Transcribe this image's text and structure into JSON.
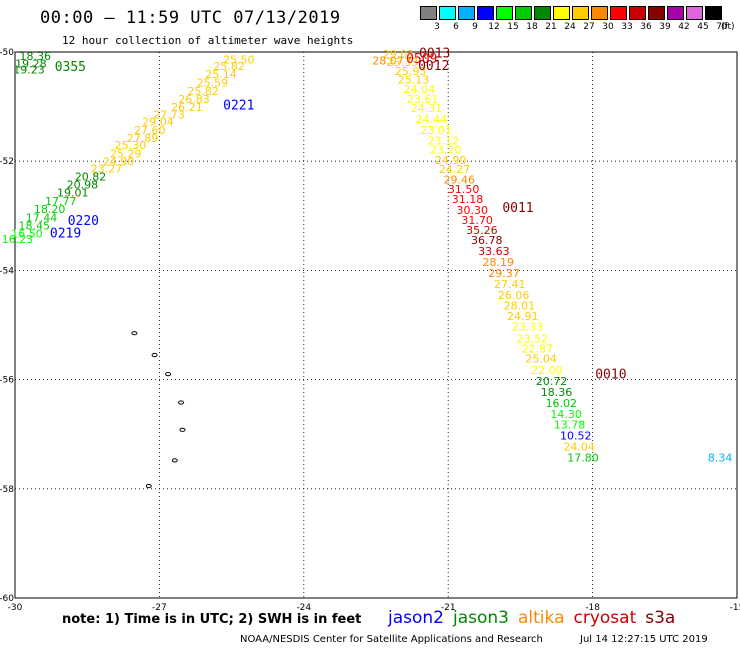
{
  "header": {
    "title": "00:00 – 11:59 UTC 07/13/2019",
    "subtitle": "12 hour collection of altimeter wave heights"
  },
  "color_scale": {
    "unit": "(ft)",
    "bins": [
      {
        "label": "3",
        "color": "#808080"
      },
      {
        "label": "6",
        "color": "#00ffff"
      },
      {
        "label": "9",
        "color": "#00b0ff"
      },
      {
        "label": "12",
        "color": "#0000ff"
      },
      {
        "label": "15",
        "color": "#00ff00"
      },
      {
        "label": "18",
        "color": "#00cc00"
      },
      {
        "label": "21",
        "color": "#008800"
      },
      {
        "label": "24",
        "color": "#ffff00"
      },
      {
        "label": "27",
        "color": "#ffcc00"
      },
      {
        "label": "30",
        "color": "#ff8800"
      },
      {
        "label": "33",
        "color": "#ff0000"
      },
      {
        "label": "36",
        "color": "#cc0000"
      },
      {
        "label": "39",
        "color": "#880000"
      },
      {
        "label": "42",
        "color": "#aa00aa"
      },
      {
        "label": "45",
        "color": "#dd66dd"
      },
      {
        "label": "70",
        "color": "#000000"
      }
    ]
  },
  "footer": {
    "note": "note: 1) Time is in UTC; 2) SWH is in feet",
    "credit": "NOAA/NESDIS Center for Satellite Applications and Research",
    "timestamp": "Jul 14 12:27:15 UTC 2019",
    "legend": [
      {
        "name": "jason2",
        "color": "#0000ff"
      },
      {
        "name": "jason3",
        "color": "#008800"
      },
      {
        "name": "altika",
        "color": "#ff8800"
      },
      {
        "name": "cryosat",
        "color": "#cc0000"
      },
      {
        "name": "s3a",
        "color": "#880000"
      }
    ]
  },
  "chart_data": {
    "type": "scatter",
    "title": "12 hour collection of altimeter wave heights",
    "xlabel": "",
    "ylabel": "",
    "xlim": [
      -30,
      -15
    ],
    "ylim": [
      -60,
      -50
    ],
    "x_ticks": [
      -30,
      -27,
      -24,
      -21,
      -18,
      -15
    ],
    "y_ticks": [
      -50,
      -52,
      -54,
      -56,
      -58,
      -60
    ],
    "x_tick_labels": [
      "-30",
      "-27",
      "-24",
      "-21",
      "-18",
      "-15"
    ],
    "y_tick_labels": [
      "-50",
      "-52",
      "-54",
      "-56",
      "-58",
      "-60"
    ],
    "grid": "dotted",
    "points": [
      {
        "lon": -29.58,
        "lat": -50.15,
        "label": "18.36",
        "color": "#008800"
      },
      {
        "lon": -29.67,
        "lat": -50.28,
        "label": "19.28",
        "color": "#008800"
      },
      {
        "lon": -29.71,
        "lat": -50.39,
        "label": "19.23",
        "color": "#008800"
      },
      {
        "lon": -26.8,
        "lat": -51.22,
        "label": "27.73",
        "color": "#ffcc00"
      },
      {
        "lon": -25.35,
        "lat": -50.21,
        "label": "25.50",
        "color": "#ffcc00"
      },
      {
        "lon": -25.55,
        "lat": -50.33,
        "label": "25.82",
        "color": "#ffcc00"
      },
      {
        "lon": -25.72,
        "lat": -50.48,
        "label": "25.14",
        "color": "#ffcc00"
      },
      {
        "lon": -25.9,
        "lat": -50.63,
        "label": "25.59",
        "color": "#ffcc00"
      },
      {
        "lon": -26.09,
        "lat": -50.79,
        "label": "25.82",
        "color": "#ffcc00"
      },
      {
        "lon": -26.28,
        "lat": -50.93,
        "label": "26.83",
        "color": "#ffcc00"
      },
      {
        "lon": -26.43,
        "lat": -51.08,
        "label": "26.21",
        "color": "#ffcc00"
      },
      {
        "lon": -27.03,
        "lat": -51.35,
        "label": "29.04",
        "color": "#ffcc00"
      },
      {
        "lon": -27.2,
        "lat": -51.5,
        "label": "27.60",
        "color": "#ffcc00"
      },
      {
        "lon": -27.35,
        "lat": -51.65,
        "label": "27.89",
        "color": "#ffcc00"
      },
      {
        "lon": -27.6,
        "lat": -51.78,
        "label": "25.30",
        "color": "#ffcc00"
      },
      {
        "lon": -27.7,
        "lat": -51.93,
        "label": "25.29",
        "color": "#ffcc00"
      },
      {
        "lon": -27.85,
        "lat": -52.08,
        "label": "24.90",
        "color": "#ffcc00"
      },
      {
        "lon": -28.1,
        "lat": -52.21,
        "label": "23.27",
        "color": "#ffcc00"
      },
      {
        "lon": -28.43,
        "lat": -52.35,
        "label": "20.82",
        "color": "#008800"
      },
      {
        "lon": -28.6,
        "lat": -52.5,
        "label": "20.98",
        "color": "#008800"
      },
      {
        "lon": -28.8,
        "lat": -52.65,
        "label": "19.01",
        "color": "#008800"
      },
      {
        "lon": -29.05,
        "lat": -52.8,
        "label": "17.77",
        "color": "#00cc00"
      },
      {
        "lon": -29.28,
        "lat": -52.95,
        "label": "18.20",
        "color": "#00cc00"
      },
      {
        "lon": -29.45,
        "lat": -53.1,
        "label": "17.44",
        "color": "#00cc00"
      },
      {
        "lon": -29.6,
        "lat": -53.25,
        "label": "18.45",
        "color": "#00cc00"
      },
      {
        "lon": -29.75,
        "lat": -53.4,
        "label": "16.50",
        "color": "#00ff00"
      },
      {
        "lon": -29.95,
        "lat": -53.5,
        "label": "16.23",
        "color": "#00ff00"
      },
      {
        "lon": -22.03,
        "lat": -50.11,
        "label": "29.01",
        "color": "#ffcc00"
      },
      {
        "lon": -22.25,
        "lat": -50.23,
        "label": "28.07",
        "color": "#ff8800"
      },
      {
        "lon": -21.95,
        "lat": -50.26,
        "label": "25.33",
        "color": "#ffcc00"
      },
      {
        "lon": -21.78,
        "lat": -50.42,
        "label": "25.93",
        "color": "#ffcc00"
      },
      {
        "lon": -21.72,
        "lat": -50.58,
        "label": "25.13",
        "color": "#ffcc00"
      },
      {
        "lon": -21.6,
        "lat": -50.75,
        "label": "24.04",
        "color": "#ffff00"
      },
      {
        "lon": -21.53,
        "lat": -50.93,
        "label": "23.61",
        "color": "#ffff00"
      },
      {
        "lon": -21.45,
        "lat": -51.1,
        "label": "24.31",
        "color": "#ffff00"
      },
      {
        "lon": -21.35,
        "lat": -51.3,
        "label": "24.44",
        "color": "#ffff00"
      },
      {
        "lon": -21.25,
        "lat": -51.5,
        "label": "23.01",
        "color": "#ffff00"
      },
      {
        "lon": -21.1,
        "lat": -51.69,
        "label": "23.12",
        "color": "#ffff00"
      },
      {
        "lon": -21.05,
        "lat": -51.86,
        "label": "23.20",
        "color": "#ffff00"
      },
      {
        "lon": -20.95,
        "lat": -52.05,
        "label": "24.90",
        "color": "#ffcc00"
      },
      {
        "lon": -20.87,
        "lat": -52.22,
        "label": "24.27",
        "color": "#ffcc00"
      },
      {
        "lon": -20.77,
        "lat": -52.41,
        "label": "29.46",
        "color": "#ff8800"
      },
      {
        "lon": -20.68,
        "lat": -52.58,
        "label": "31.50",
        "color": "#ff0000"
      },
      {
        "lon": -20.6,
        "lat": -52.77,
        "label": "31.18",
        "color": "#ff0000"
      },
      {
        "lon": -20.5,
        "lat": -52.97,
        "label": "30.30",
        "color": "#ff0000"
      },
      {
        "lon": -20.4,
        "lat": -53.15,
        "label": "31.70",
        "color": "#ff0000"
      },
      {
        "lon": -20.3,
        "lat": -53.33,
        "label": "35.26",
        "color": "#cc0000"
      },
      {
        "lon": -20.2,
        "lat": -53.52,
        "label": "36.78",
        "color": "#880000"
      },
      {
        "lon": -20.05,
        "lat": -53.72,
        "label": "33.63",
        "color": "#cc0000"
      },
      {
        "lon": -19.96,
        "lat": -53.92,
        "label": "28.19",
        "color": "#ff8800"
      },
      {
        "lon": -19.84,
        "lat": -54.12,
        "label": "29.37",
        "color": "#ff8800"
      },
      {
        "lon": -19.72,
        "lat": -54.32,
        "label": "27.41",
        "color": "#ffcc00"
      },
      {
        "lon": -19.64,
        "lat": -54.52,
        "label": "26.06",
        "color": "#ffcc00"
      },
      {
        "lon": -19.52,
        "lat": -54.72,
        "label": "28.01",
        "color": "#ffcc00"
      },
      {
        "lon": -19.45,
        "lat": -54.91,
        "label": "24.91",
        "color": "#ffcc00"
      },
      {
        "lon": -19.35,
        "lat": -55.1,
        "label": "23.33",
        "color": "#ffff00"
      },
      {
        "lon": -19.25,
        "lat": -55.32,
        "label": "23.52",
        "color": "#ffff00"
      },
      {
        "lon": -19.15,
        "lat": -55.5,
        "label": "22.87",
        "color": "#ffff00"
      },
      {
        "lon": -19.07,
        "lat": -55.69,
        "label": "25.04",
        "color": "#ffcc00"
      },
      {
        "lon": -18.95,
        "lat": -55.9,
        "label": "22.00",
        "color": "#ffff00"
      },
      {
        "lon": -18.85,
        "lat": -56.1,
        "label": "20.72",
        "color": "#008800"
      },
      {
        "lon": -18.75,
        "lat": -56.3,
        "label": "18.36",
        "color": "#008800"
      },
      {
        "lon": -18.65,
        "lat": -56.5,
        "label": "16.02",
        "color": "#00cc00"
      },
      {
        "lon": -18.55,
        "lat": -56.7,
        "label": "14.30",
        "color": "#00ff00"
      },
      {
        "lon": -18.48,
        "lat": -56.9,
        "label": "13.78",
        "color": "#00ff00"
      },
      {
        "lon": -18.35,
        "lat": -57.1,
        "label": "10.52",
        "color": "#0000ff"
      },
      {
        "lon": -18.28,
        "lat": -57.3,
        "label": "24.04",
        "color": "#ffcc00"
      },
      {
        "lon": -18.2,
        "lat": -57.5,
        "label": "17.80",
        "color": "#00cc00"
      },
      {
        "lon": -15.35,
        "lat": -57.5,
        "label": "8.34",
        "color": "#00b0ff"
      }
    ],
    "pass_times": [
      {
        "lon": -28.85,
        "lat": -50.35,
        "label": "0355",
        "color": "#008800"
      },
      {
        "lon": -25.35,
        "lat": -51.05,
        "label": "0221",
        "color": "#0000ff"
      },
      {
        "lon": -28.58,
        "lat": -53.17,
        "label": "0220",
        "color": "#0000ff"
      },
      {
        "lon": -28.95,
        "lat": -53.4,
        "label": "0219",
        "color": "#0000ff"
      },
      {
        "lon": -21.28,
        "lat": -50.1,
        "label": "0013",
        "color": "#880000"
      },
      {
        "lon": -21.55,
        "lat": -50.2,
        "label": "0509",
        "color": "#ff0000"
      },
      {
        "lon": -21.3,
        "lat": -50.33,
        "label": "0012",
        "color": "#880000"
      },
      {
        "lon": -19.55,
        "lat": -52.93,
        "label": "0011",
        "color": "#880000"
      },
      {
        "lon": -17.62,
        "lat": -55.98,
        "label": "0010",
        "color": "#880000"
      }
    ],
    "islands": [
      {
        "lon": -27.52,
        "lat": -55.15
      },
      {
        "lon": -27.1,
        "lat": -55.55
      },
      {
        "lon": -26.82,
        "lat": -55.9
      },
      {
        "lon": -26.55,
        "lat": -56.42
      },
      {
        "lon": -26.52,
        "lat": -56.92
      },
      {
        "lon": -26.68,
        "lat": -57.48
      },
      {
        "lon": -27.22,
        "lat": -57.95
      }
    ]
  }
}
